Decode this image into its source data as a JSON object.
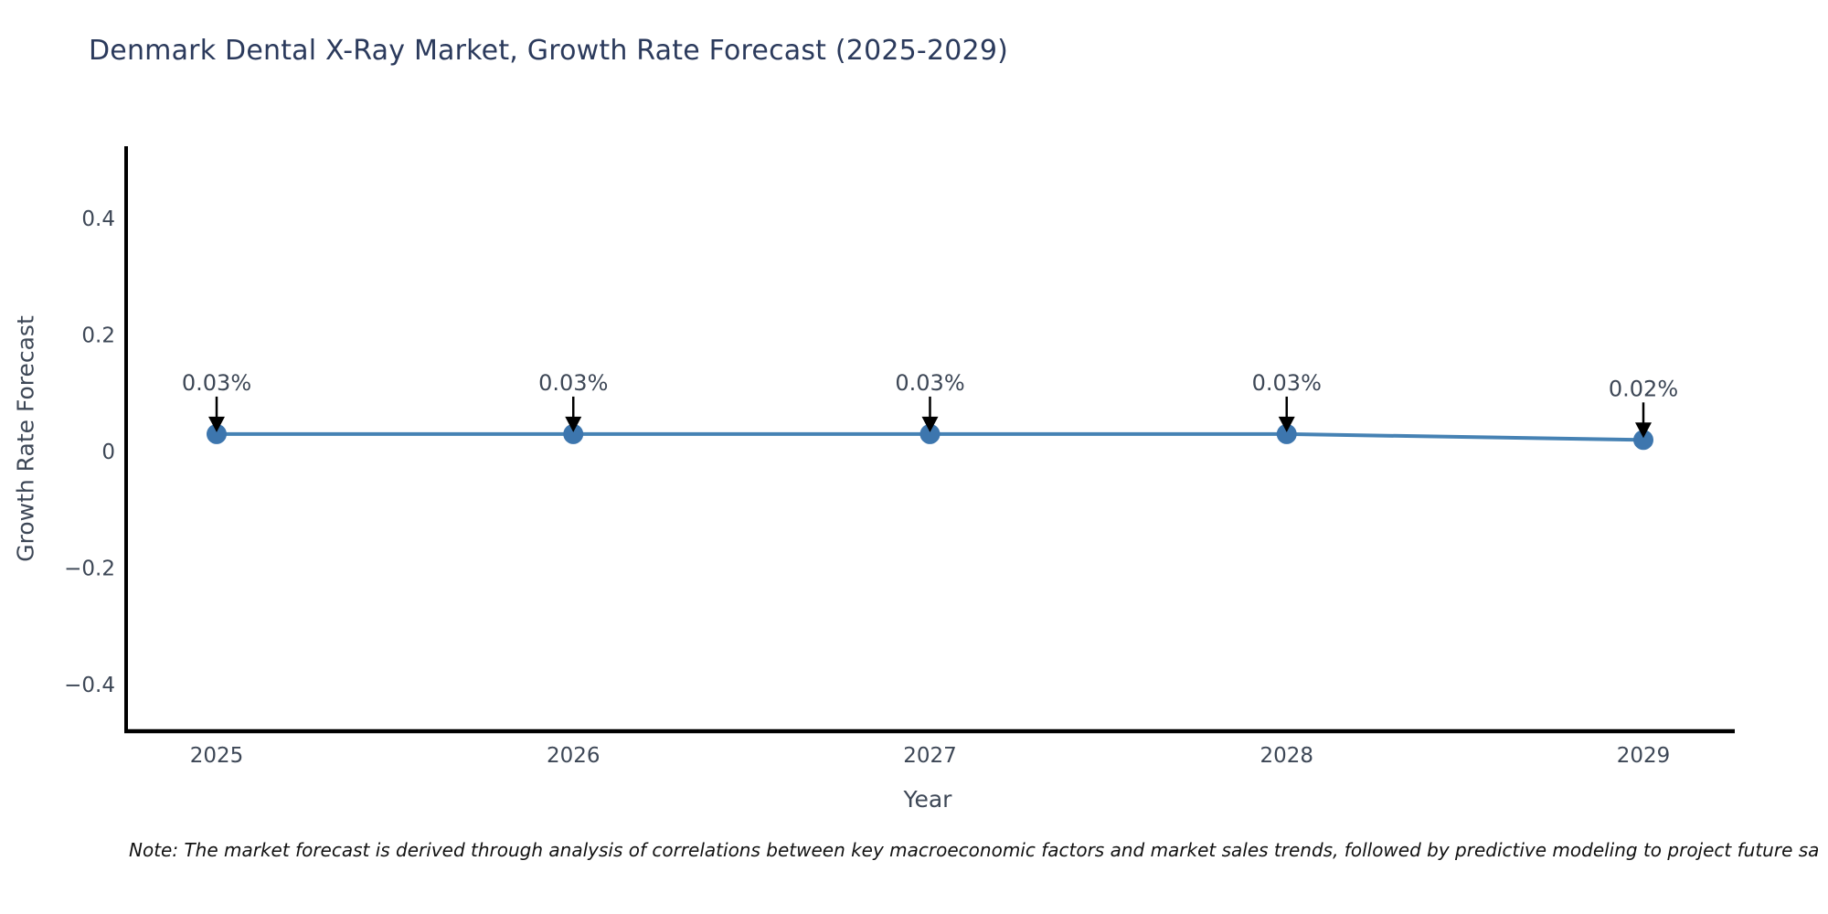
{
  "note": "Note: The market forecast is derived through analysis of correlations between key macroeconomic factors and market sales trends, followed by predictive modeling to project future sa",
  "chart_data": {
    "type": "line",
    "title": "Denmark Dental X-Ray Market, Growth Rate Forecast (2025-2029)",
    "xlabel": "Year",
    "ylabel": "Growth Rate Forecast",
    "x": [
      "2025",
      "2026",
      "2027",
      "2028",
      "2029"
    ],
    "series": [
      {
        "name": "Growth Rate Forecast",
        "values": [
          0.03,
          0.03,
          0.03,
          0.03,
          0.02
        ]
      }
    ],
    "point_labels": [
      "0.03%",
      "0.03%",
      "0.03%",
      "0.03%",
      "0.02%"
    ],
    "ylim": [
      -0.48,
      0.524
    ],
    "yticks": [
      -0.4,
      -0.2,
      0,
      0.2,
      0.4
    ],
    "ytick_labels": [
      "−0.4",
      "−0.2",
      "0",
      "0.2",
      "0.4"
    ],
    "grid": false,
    "legend": "none",
    "colors": {
      "line": "#4682b4",
      "marker": "#3d76ae",
      "arrow": "#000000",
      "spine": "#000000",
      "tick_text": "#3d4756",
      "title_text": "#2b3a5c",
      "note_text": "#111111"
    }
  }
}
